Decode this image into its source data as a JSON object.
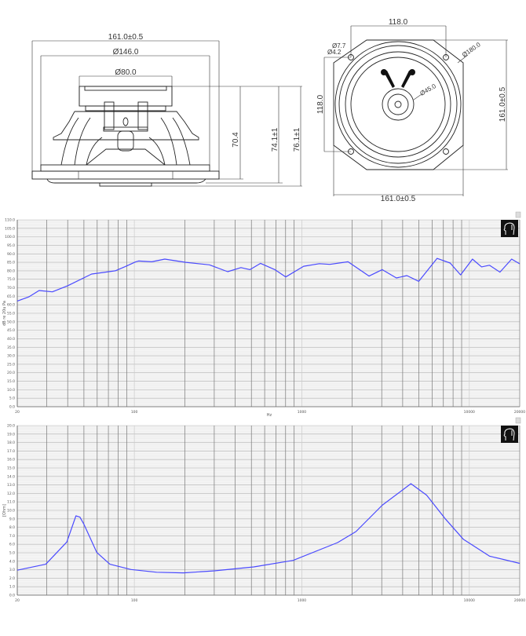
{
  "drawings": {
    "side_view": {
      "overall_width": "161.0±0.5",
      "frame_diameter": "Ø146.0",
      "magnet_diameter": "Ø80.0",
      "depth_1": "70.4",
      "depth_2": "74.1±1",
      "depth_3": "76.1±1"
    },
    "front_view": {
      "hole_spacing_h": "118.0",
      "hole_spacing_v": "118.0",
      "hole_outer": "Ø7.7",
      "hole_inner": "Ø4.2",
      "cone_diameter": "Ø180.0",
      "dustcap_diameter": "Ø45.0",
      "height": "161.0±0.5",
      "width": "161.0±0.5"
    }
  },
  "chart_data": [
    {
      "type": "line",
      "title": "",
      "xlabel": "Hz",
      "ylabel": "dB re 20u Pa",
      "xscale": "log",
      "xlim": [
        20,
        20000
      ],
      "ylim": [
        0,
        110
      ],
      "grid": true,
      "x_tick_labels": [
        "20",
        "100",
        "1000",
        "10000",
        "20000"
      ],
      "y_tick_labels": [
        "0.0",
        "5.0",
        "10.0",
        "15.0",
        "20.0",
        "25.0",
        "30.0",
        "35.0",
        "40.0",
        "45.0",
        "50.0",
        "55.0",
        "60.0",
        "65.0",
        "70.0",
        "75.0",
        "80.0",
        "85.0",
        "90.0",
        "95.0",
        "100.0",
        "105.0",
        "110.0"
      ],
      "line_color": "#4a4aff",
      "icon": "head-logo-icon",
      "series": [
        {
          "x": [
            20,
            23.4,
            27,
            32.4,
            40,
            55.6,
            76.9,
            88.7,
            102,
            106,
            127,
            152,
            203,
            281,
            361,
            433,
            490,
            567,
            690,
            802,
            1026,
            1273,
            1469,
            1888,
            2520,
            3020,
            3670,
            4240,
            4990,
            6420,
            7690,
            8870,
            10440,
            11830,
            13180,
            15230,
            17900,
            20000
          ],
          "y": [
            62.2,
            64.6,
            68.4,
            67.6,
            71.2,
            78.1,
            80.0,
            82.6,
            85.3,
            85.8,
            85.3,
            86.9,
            85.0,
            83.5,
            79.5,
            81.9,
            80.7,
            84.4,
            80.7,
            76.4,
            82.7,
            84.2,
            83.8,
            85.3,
            76.9,
            80.7,
            75.8,
            77.2,
            73.8,
            87.3,
            84.6,
            77.6,
            86.9,
            82.3,
            83.3,
            79.2,
            86.9,
            84.1
          ]
        }
      ]
    },
    {
      "type": "line",
      "title": "",
      "xlabel": "",
      "ylabel": "[Ohm]",
      "xscale": "log",
      "xlim": [
        20,
        20000
      ],
      "ylim": [
        0,
        20
      ],
      "grid": true,
      "x_tick_labels": [
        "20",
        "100",
        "1000",
        "10000",
        "20000"
      ],
      "y_tick_labels": [
        "0.0",
        "1.0",
        "2.0",
        "3.0",
        "4.0",
        "5.0",
        "6.0",
        "7.0",
        "8.0",
        "9.0",
        "10.0",
        "11.0",
        "12.0",
        "13.0",
        "14.0",
        "15.0",
        "16.0",
        "17.0",
        "18.0",
        "19.0",
        "20.0"
      ],
      "line_color": "#4a4aff",
      "icon": "head-logo-icon",
      "series": [
        {
          "x": [
            20,
            29.6,
            39.5,
            44.8,
            47.3,
            49.9,
            59.7,
            71.5,
            95.4,
            136,
            196,
            301,
            517,
            888,
            1637,
            2105,
            3020,
            4480,
            5560,
            7160,
            9200,
            13200,
            20000
          ],
          "y": [
            2.94,
            3.65,
            6.27,
            9.35,
            9.2,
            8.4,
            5.04,
            3.65,
            3.03,
            2.7,
            2.63,
            2.87,
            3.33,
            4.1,
            6.2,
            7.5,
            10.6,
            13.15,
            11.8,
            9.05,
            6.6,
            4.6,
            3.75
          ]
        }
      ]
    }
  ]
}
